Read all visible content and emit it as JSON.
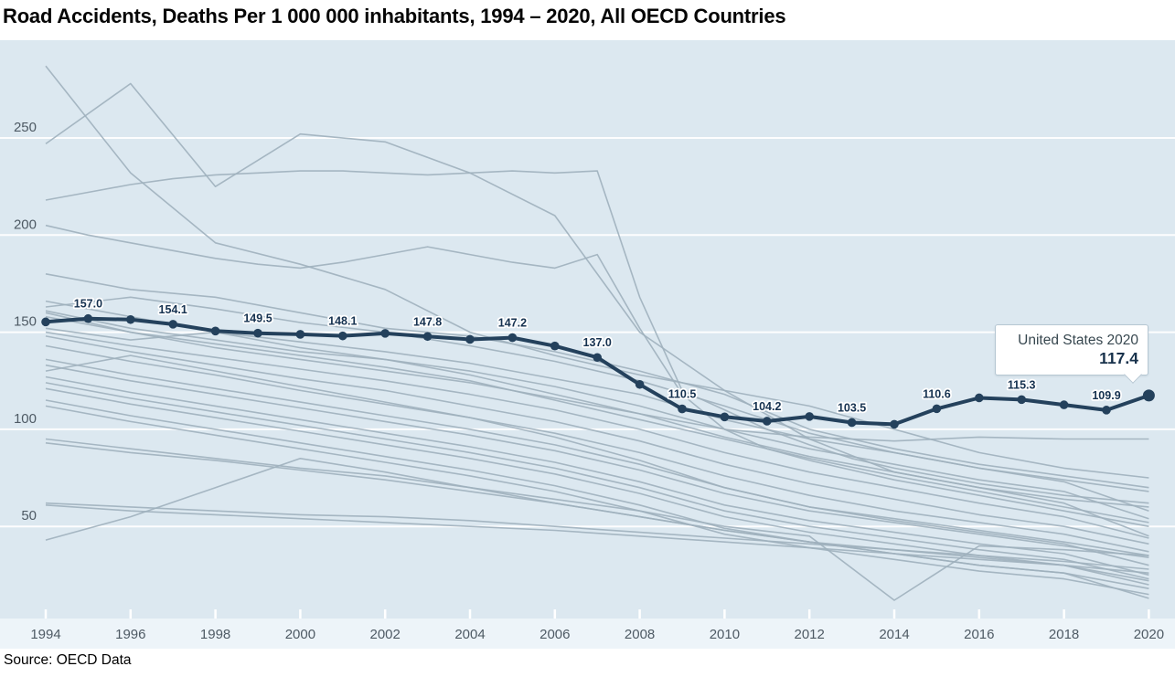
{
  "title": "Road Accidents, Deaths Per 1 000 000 inhabitants, 1994 – 2020, All OECD Countries",
  "source": "Source: OECD Data",
  "tooltip": {
    "label": "United States 2020",
    "value": "117.4"
  },
  "colors": {
    "plot_background": "#dce8f0",
    "axis_strip_background": "#edf4f9",
    "gridline": "#ffffff",
    "highlight_line": "#24415c",
    "highlight_point": "#24415c",
    "data_label": "#163250",
    "data_label_halo": "#ffffff",
    "background_line": "#9fb0bd",
    "axis_text": "#4e5a64",
    "tooltip_border": "#b6c7d3"
  },
  "chart_data": {
    "type": "line",
    "title": "Road Accidents, Deaths Per 1 000 000 inhabitants, 1994 – 2020, All OECD Countries",
    "xlabel": "",
    "ylabel": "",
    "x_range": [
      1994,
      2020
    ],
    "xticks": [
      1994,
      1996,
      1998,
      2000,
      2002,
      2004,
      2006,
      2008,
      2010,
      2012,
      2014,
      2016,
      2018,
      2020
    ],
    "yticks": [
      50,
      100,
      150,
      200,
      250
    ],
    "ylim": [
      0,
      300
    ],
    "grid": true,
    "legend": "none",
    "highlight_series": {
      "name": "United States",
      "x_start": 1994,
      "x_step": 1,
      "values": [
        155.3,
        157.0,
        156.5,
        154.1,
        150.6,
        149.5,
        148.9,
        148.1,
        149.4,
        147.8,
        146.3,
        147.2,
        142.9,
        137.0,
        123.1,
        110.5,
        106.4,
        104.2,
        106.6,
        103.5,
        102.6,
        110.6,
        116.2,
        115.3,
        112.6,
        109.9,
        117.4
      ],
      "label_years": [
        1995,
        1997,
        1999,
        2001,
        2003,
        2005,
        2007,
        2009,
        2011,
        2013,
        2015,
        2017,
        2019
      ],
      "final_point_year": 2020,
      "final_point_value": 117.4
    },
    "background_series": [
      {
        "values": [
          287,
          232,
          196,
          185,
          172,
          150,
          138,
          128,
          120,
          112,
          100,
          88,
          80,
          75
        ]
      },
      {
        "values": [
          247,
          278,
          225,
          252,
          248,
          232,
          210,
          150,
          120,
          95,
          78,
          70,
          64,
          60
        ]
      },
      {
        "values": [
          218,
          222,
          226,
          229,
          231,
          232,
          233,
          233,
          232,
          231,
          232,
          233,
          232,
          233,
          168,
          120,
          110,
          100,
          92,
          85,
          80,
          76,
          72,
          69,
          66,
          64,
          62
        ]
      },
      {
        "values": [
          205,
          200,
          196,
          192,
          188,
          185,
          183,
          186,
          190,
          194,
          190,
          186,
          183,
          190,
          152,
          118,
          100,
          90,
          84,
          79,
          74,
          70,
          66,
          62,
          58,
          54,
          50
        ]
      },
      {
        "values": [
          180,
          172,
          168,
          160,
          152,
          148,
          140,
          130,
          118,
          100,
          90,
          82,
          76,
          70
        ]
      },
      {
        "values": [
          166,
          158,
          150,
          145,
          140,
          134,
          126,
          118,
          105,
          95,
          88,
          80,
          74,
          68
        ]
      },
      {
        "values": [
          163,
          168,
          162,
          155,
          150,
          143,
          135,
          125,
          112,
          98,
          88,
          80,
          73,
          58
        ]
      },
      {
        "values": [
          161,
          152,
          146,
          140,
          136,
          130,
          122,
          112,
          100,
          90,
          82,
          74,
          68,
          54
        ]
      },
      {
        "values": [
          158,
          150,
          144,
          138,
          132,
          125,
          115,
          105,
          95,
          85,
          76,
          68,
          60,
          52
        ]
      },
      {
        "values": [
          160,
          150,
          142,
          136,
          130,
          124,
          116,
          108,
          100,
          96,
          94,
          96,
          95,
          95
        ]
      },
      {
        "values": [
          152,
          146,
          150,
          142,
          136,
          128,
          118,
          108,
          96,
          86,
          78,
          70,
          62,
          45
        ]
      },
      {
        "values": [
          150,
          143,
          137,
          131,
          125,
          118,
          110,
          100,
          88,
          78,
          70,
          62,
          55,
          44
        ]
      },
      {
        "values": [
          148,
          140,
          133,
          126,
          120,
          112,
          104,
          94,
          82,
          72,
          64,
          56,
          50,
          41
        ]
      },
      {
        "values": [
          143,
          135,
          128,
          120,
          113,
          106,
          98,
          88,
          76,
          66,
          58,
          52,
          46,
          37
        ]
      },
      {
        "values": [
          136,
          128,
          121,
          114,
          107,
          100,
          92,
          82,
          70,
          60,
          54,
          48,
          42,
          35
        ]
      },
      {
        "values": [
          133,
          125,
          118,
          111,
          104,
          97,
          89,
          79,
          67,
          58,
          52,
          46,
          40,
          34
        ]
      },
      {
        "values": [
          130,
          138,
          130,
          122,
          114,
          106,
          96,
          84,
          70,
          60,
          53,
          47,
          41,
          30
        ]
      },
      {
        "values": [
          127,
          119,
          112,
          105,
          98,
          91,
          83,
          73,
          61,
          53,
          47,
          41,
          36,
          25
        ]
      },
      {
        "values": [
          124,
          116,
          109,
          102,
          95,
          88,
          80,
          70,
          58,
          50,
          44,
          38,
          33,
          23
        ]
      },
      {
        "values": [
          121,
          113,
          106,
          99,
          92,
          85,
          77,
          67,
          55,
          47,
          41,
          35,
          30,
          20
        ]
      },
      {
        "values": [
          115,
          107,
          100,
          93,
          86,
          79,
          71,
          61,
          49,
          42,
          36,
          30,
          26,
          18
        ]
      },
      {
        "values": [
          112,
          104,
          97,
          90,
          83,
          76,
          68,
          58,
          46,
          39,
          33,
          27,
          23,
          15
        ]
      },
      {
        "values": [
          95,
          90,
          85,
          80,
          76,
          70,
          64,
          58,
          50,
          45,
          12,
          40,
          38,
          35
        ]
      },
      {
        "values": [
          93,
          88,
          84,
          79,
          74,
          68,
          62,
          55,
          48,
          42,
          38,
          34,
          30,
          26
        ]
      },
      {
        "values": [
          62,
          60,
          58,
          56,
          55,
          53,
          50,
          47,
          44,
          41,
          38,
          35,
          32,
          28
        ]
      },
      {
        "values": [
          61,
          58,
          56,
          54,
          52,
          50,
          48,
          45,
          42,
          39,
          36,
          33,
          30,
          22
        ]
      },
      {
        "values": [
          43,
          55,
          70,
          85,
          78,
          70,
          62,
          55,
          48,
          42,
          36,
          30,
          26,
          13
        ]
      }
    ]
  }
}
